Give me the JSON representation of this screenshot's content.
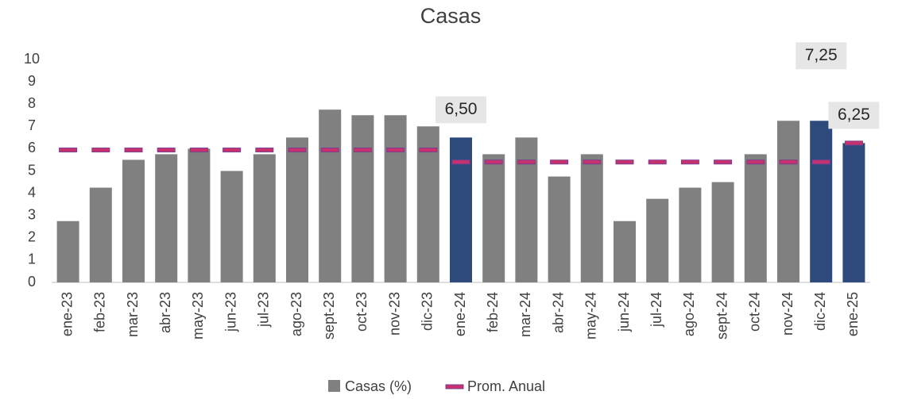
{
  "chart_data": {
    "type": "bar",
    "title": "Casas",
    "categories": [
      "ene-23",
      "feb-23",
      "mar-23",
      "abr-23",
      "may-23",
      "jun-23",
      "jul-23",
      "ago-23",
      "sept-23",
      "oct-23",
      "nov-23",
      "dic-23",
      "ene-24",
      "feb-24",
      "mar-24",
      "abr-24",
      "may-24",
      "jun-24",
      "jul-24",
      "ago-24",
      "sept-24",
      "oct-24",
      "nov-24",
      "dic-24",
      "ene-25"
    ],
    "series": [
      {
        "name": "Casas (%)",
        "type": "bar",
        "color": "#808080",
        "colors": [
          "#808080",
          "#808080",
          "#808080",
          "#808080",
          "#808080",
          "#808080",
          "#808080",
          "#808080",
          "#808080",
          "#808080",
          "#808080",
          "#808080",
          "#2e4a7d",
          "#808080",
          "#808080",
          "#808080",
          "#808080",
          "#808080",
          "#808080",
          "#808080",
          "#808080",
          "#808080",
          "#808080",
          "#2e4a7d",
          "#2e4a7d"
        ],
        "values": [
          2.75,
          4.25,
          5.5,
          5.75,
          6.0,
          5.0,
          5.75,
          6.5,
          7.75,
          7.5,
          7.5,
          7.0,
          6.5,
          5.75,
          6.5,
          4.75,
          5.75,
          2.75,
          3.75,
          4.25,
          4.5,
          5.75,
          7.25,
          7.25,
          6.25
        ],
        "value_labels": [
          null,
          null,
          null,
          null,
          null,
          null,
          null,
          null,
          null,
          null,
          null,
          null,
          "6,50",
          null,
          null,
          null,
          null,
          null,
          null,
          null,
          null,
          null,
          null,
          "7,25",
          "6,25"
        ]
      },
      {
        "name": "Prom. Anual",
        "type": "dash",
        "color": "#c8306e",
        "values": [
          5.94,
          5.94,
          5.94,
          5.94,
          5.94,
          5.94,
          5.94,
          5.94,
          5.94,
          5.94,
          5.94,
          5.94,
          5.4,
          5.4,
          5.4,
          5.4,
          5.4,
          5.4,
          5.4,
          5.4,
          5.4,
          5.4,
          5.4,
          5.4,
          6.25
        ]
      }
    ],
    "ylim": [
      0,
      10
    ],
    "yticks": [
      0,
      1,
      2,
      3,
      4,
      5,
      6,
      7,
      8,
      9,
      10
    ],
    "grid": false
  }
}
